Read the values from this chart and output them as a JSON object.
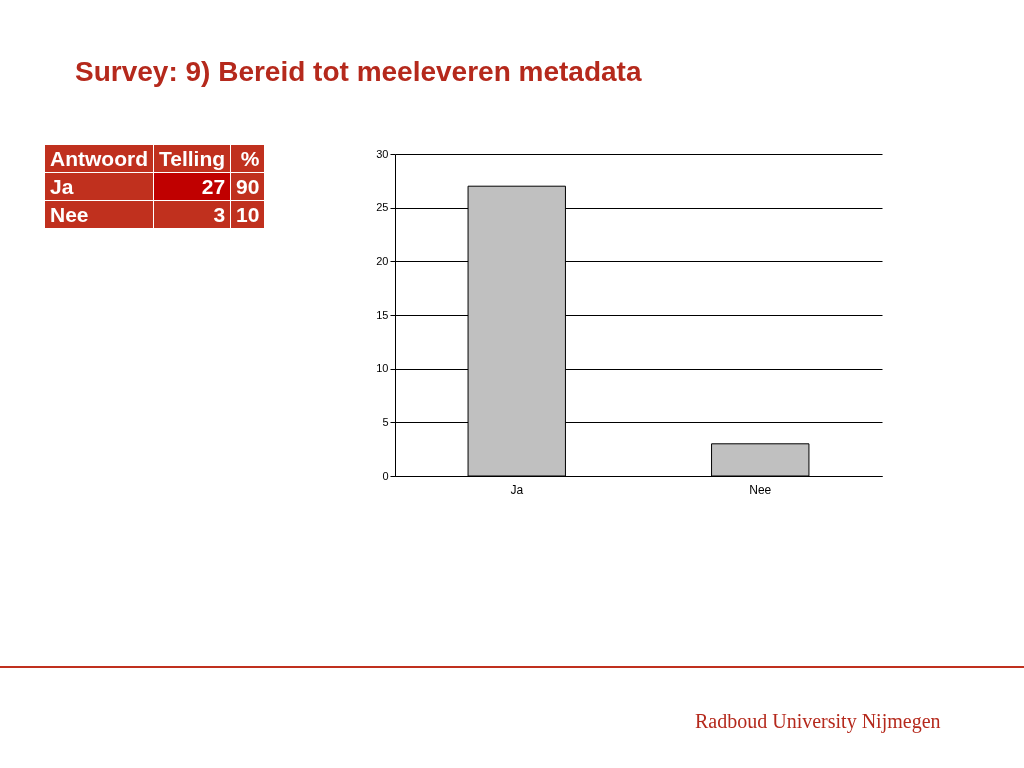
{
  "chart_data": {
    "type": "bar",
    "title": "Survey: 9) Bereid tot meeleveren metadata",
    "categories": [
      "Ja",
      "Nee"
    ],
    "values": [
      27,
      3
    ],
    "color": "#c0c0c0",
    "ylim": [
      0,
      30
    ],
    "yticks": [
      0,
      5,
      10,
      15,
      20,
      25,
      30
    ],
    "grid": "y",
    "annotations": [
      "Antwoord",
      "Telling",
      "%",
      "Ja",
      "27",
      "90",
      "Nee",
      "3",
      "10",
      "Radboud University Nijmegen"
    ]
  }
}
